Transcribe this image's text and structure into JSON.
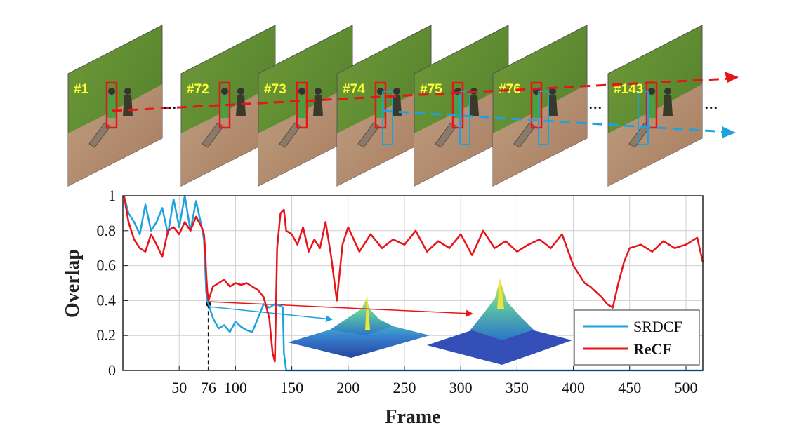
{
  "frames": [
    "#1",
    "#72",
    "#73",
    "#74",
    "#75",
    "#76",
    "#143"
  ],
  "frame_gap_marker": "...",
  "colors": {
    "srdcf": "#1aa3e0",
    "recf": "#e8141a",
    "label": "#ffff33"
  },
  "chart_data": {
    "type": "line",
    "xlabel": "Frame",
    "ylabel": "Overlap",
    "xlim": [
      0,
      515
    ],
    "ylim": [
      0,
      1
    ],
    "xticks": [
      50,
      76,
      100,
      150,
      200,
      250,
      300,
      350,
      400,
      450,
      500
    ],
    "yticks": [
      0,
      0.2,
      0.4,
      0.6,
      0.8,
      1
    ],
    "grid": true,
    "legend_position": "bottom-right",
    "marker_frame": 76,
    "series": [
      {
        "name": "SRDCF",
        "x": [
          1,
          5,
          10,
          15,
          20,
          25,
          30,
          35,
          40,
          45,
          50,
          55,
          60,
          65,
          70,
          72,
          73,
          74,
          75,
          76,
          80,
          85,
          90,
          95,
          100,
          105,
          110,
          115,
          120,
          125,
          130,
          135,
          140,
          142,
          143,
          145,
          150,
          200,
          250,
          300,
          350,
          400,
          450,
          500,
          515
        ],
        "y": [
          1.0,
          0.9,
          0.85,
          0.78,
          0.95,
          0.8,
          0.85,
          0.93,
          0.78,
          0.98,
          0.82,
          1.0,
          0.8,
          0.97,
          0.82,
          0.75,
          0.6,
          0.45,
          0.4,
          0.38,
          0.3,
          0.24,
          0.26,
          0.22,
          0.28,
          0.25,
          0.23,
          0.22,
          0.3,
          0.38,
          0.36,
          0.38,
          0.37,
          0.36,
          0.1,
          0.0,
          0.0,
          0.0,
          0.0,
          0.0,
          0.0,
          0.0,
          0.0,
          0.0,
          0.0
        ]
      },
      {
        "name": "ReCF",
        "x": [
          1,
          5,
          10,
          15,
          20,
          25,
          30,
          35,
          40,
          45,
          50,
          55,
          60,
          65,
          70,
          72,
          73,
          74,
          75,
          76,
          80,
          85,
          90,
          95,
          100,
          105,
          110,
          115,
          120,
          125,
          130,
          133,
          135,
          137,
          140,
          143,
          145,
          150,
          155,
          160,
          165,
          170,
          175,
          180,
          185,
          190,
          195,
          200,
          210,
          220,
          230,
          240,
          250,
          260,
          270,
          280,
          290,
          300,
          310,
          320,
          330,
          340,
          350,
          360,
          370,
          380,
          390,
          400,
          405,
          410,
          415,
          420,
          425,
          430,
          435,
          440,
          445,
          450,
          460,
          470,
          480,
          490,
          500,
          510,
          515
        ],
        "y": [
          1.0,
          0.85,
          0.75,
          0.7,
          0.68,
          0.78,
          0.72,
          0.65,
          0.8,
          0.82,
          0.78,
          0.85,
          0.8,
          0.88,
          0.82,
          0.78,
          0.7,
          0.55,
          0.45,
          0.4,
          0.48,
          0.5,
          0.52,
          0.48,
          0.5,
          0.49,
          0.5,
          0.48,
          0.46,
          0.42,
          0.3,
          0.1,
          0.05,
          0.7,
          0.9,
          0.92,
          0.8,
          0.78,
          0.72,
          0.82,
          0.68,
          0.75,
          0.7,
          0.85,
          0.65,
          0.4,
          0.72,
          0.82,
          0.68,
          0.78,
          0.7,
          0.75,
          0.72,
          0.8,
          0.68,
          0.74,
          0.7,
          0.78,
          0.66,
          0.8,
          0.7,
          0.74,
          0.68,
          0.72,
          0.75,
          0.7,
          0.78,
          0.6,
          0.55,
          0.5,
          0.48,
          0.45,
          0.42,
          0.38,
          0.36,
          0.5,
          0.62,
          0.7,
          0.72,
          0.68,
          0.74,
          0.7,
          0.72,
          0.76,
          0.62
        ]
      }
    ]
  }
}
